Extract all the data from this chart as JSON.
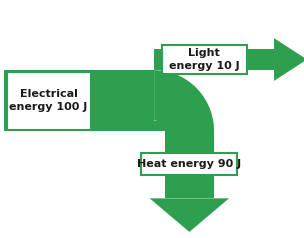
{
  "bg_color": "#ffffff",
  "arrow_color": "#2e9e4f",
  "box_edge_color": "#2e9e4f",
  "text_color": "#1a1a1a",
  "label_electrical": "Electrical\nenergy 100 J",
  "label_light": "Light\nenergy 10 J",
  "label_heat": "Heat energy 90 J",
  "fig_width": 3.04,
  "fig_height": 2.38,
  "dpi": 100
}
